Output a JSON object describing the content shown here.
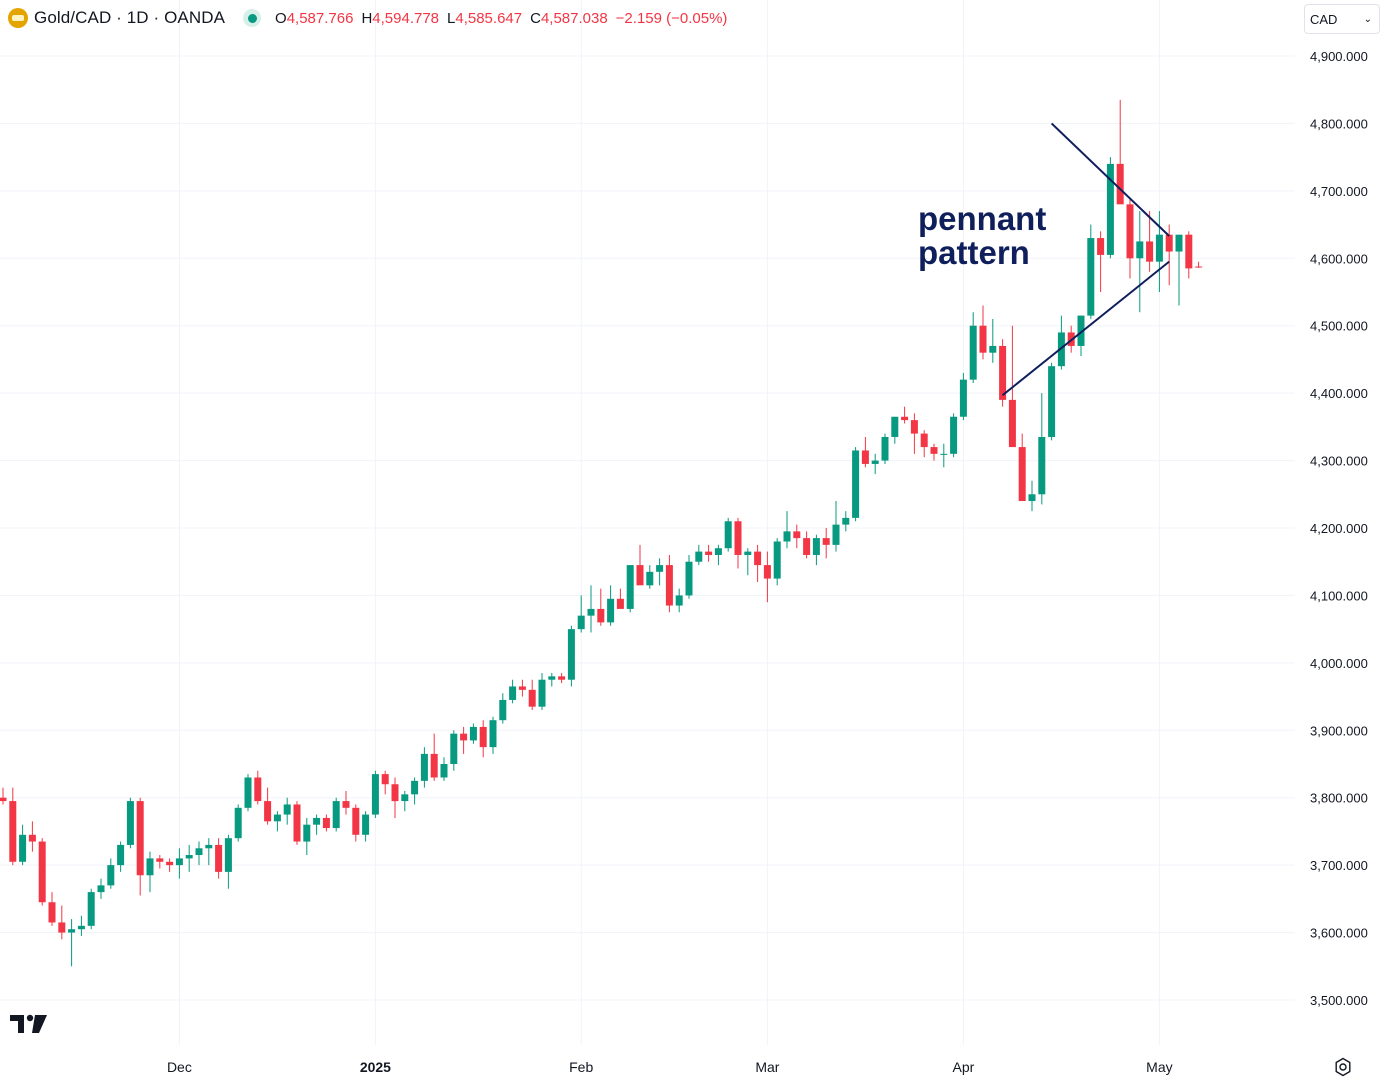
{
  "header": {
    "symbol": "Gold/CAD · 1D · OANDA",
    "open_label": "O",
    "open": "4,587.766",
    "high_label": "H",
    "high": "4,594.778",
    "low_label": "L",
    "low": "4,585.647",
    "close_label": "C",
    "close": "4,587.038",
    "change": "−2.159 (−0.05%)"
  },
  "currency_select": {
    "value": "CAD"
  },
  "colors": {
    "up": "#089981",
    "down": "#f23645",
    "annotation": "#0f1f5c",
    "grid": "#f0f3fa"
  },
  "icons": {
    "logo": "tradingview-logo-icon",
    "settings": "settings-icon",
    "symbol": "gold-bars-icon"
  },
  "chart_data": {
    "type": "candlestick",
    "annotation": "pennant pattern",
    "y_axis": {
      "ticks": [
        "3,500.000",
        "3,600.000",
        "3,700.000",
        "3,800.000",
        "3,900.000",
        "4,000.000",
        "4,100.000",
        "4,200.000",
        "4,300.000",
        "4,400.000",
        "4,500.000",
        "4,600.000",
        "4,700.000",
        "4,800.000",
        "4,900.000"
      ],
      "range": [
        3430,
        4985
      ]
    },
    "x_axis": {
      "labels": [
        "Dec",
        "2025",
        "Feb",
        "Mar",
        "Apr",
        "May"
      ],
      "label_index": [
        18,
        38,
        59,
        78,
        98,
        118
      ]
    },
    "trendlines": [
      {
        "name": "upper",
        "from": [
          107,
          4800
        ],
        "to": [
          119,
          4633
        ]
      },
      {
        "name": "lower",
        "from": [
          102,
          4397
        ],
        "to": [
          119,
          4595
        ]
      }
    ],
    "candles": [
      [
        3800,
        3815,
        3790,
        3795
      ],
      [
        3795,
        3815,
        3700,
        3705
      ],
      [
        3705,
        3760,
        3700,
        3745
      ],
      [
        3745,
        3765,
        3720,
        3735
      ],
      [
        3735,
        3740,
        3640,
        3645
      ],
      [
        3645,
        3660,
        3610,
        3615
      ],
      [
        3615,
        3640,
        3590,
        3600
      ],
      [
        3600,
        3620,
        3550,
        3605
      ],
      [
        3605,
        3625,
        3595,
        3610
      ],
      [
        3610,
        3665,
        3605,
        3660
      ],
      [
        3660,
        3680,
        3650,
        3670
      ],
      [
        3670,
        3710,
        3665,
        3700
      ],
      [
        3700,
        3735,
        3690,
        3730
      ],
      [
        3730,
        3800,
        3725,
        3795
      ],
      [
        3795,
        3800,
        3655,
        3685
      ],
      [
        3685,
        3720,
        3660,
        3710
      ],
      [
        3710,
        3715,
        3695,
        3705
      ],
      [
        3705,
        3710,
        3690,
        3700
      ],
      [
        3700,
        3725,
        3680,
        3710
      ],
      [
        3710,
        3730,
        3690,
        3715
      ],
      [
        3715,
        3735,
        3700,
        3725
      ],
      [
        3725,
        3740,
        3700,
        3730
      ],
      [
        3730,
        3740,
        3680,
        3690
      ],
      [
        3690,
        3745,
        3665,
        3740
      ],
      [
        3740,
        3790,
        3735,
        3785
      ],
      [
        3785,
        3835,
        3780,
        3830
      ],
      [
        3830,
        3840,
        3790,
        3795
      ],
      [
        3795,
        3815,
        3760,
        3765
      ],
      [
        3765,
        3780,
        3750,
        3775
      ],
      [
        3775,
        3800,
        3760,
        3790
      ],
      [
        3790,
        3795,
        3730,
        3735
      ],
      [
        3735,
        3770,
        3715,
        3760
      ],
      [
        3760,
        3775,
        3745,
        3770
      ],
      [
        3770,
        3775,
        3750,
        3755
      ],
      [
        3755,
        3800,
        3750,
        3795
      ],
      [
        3795,
        3810,
        3775,
        3785
      ],
      [
        3785,
        3790,
        3735,
        3745
      ],
      [
        3745,
        3780,
        3735,
        3775
      ],
      [
        3775,
        3840,
        3770,
        3835
      ],
      [
        3835,
        3840,
        3805,
        3820
      ],
      [
        3820,
        3830,
        3770,
        3795
      ],
      [
        3795,
        3810,
        3780,
        3805
      ],
      [
        3805,
        3830,
        3790,
        3825
      ],
      [
        3825,
        3875,
        3815,
        3865
      ],
      [
        3865,
        3895,
        3825,
        3830
      ],
      [
        3830,
        3860,
        3825,
        3850
      ],
      [
        3850,
        3900,
        3840,
        3895
      ],
      [
        3895,
        3905,
        3865,
        3885
      ],
      [
        3885,
        3910,
        3880,
        3905
      ],
      [
        3905,
        3915,
        3860,
        3875
      ],
      [
        3875,
        3920,
        3865,
        3915
      ],
      [
        3915,
        3955,
        3910,
        3945
      ],
      [
        3945,
        3975,
        3940,
        3965
      ],
      [
        3965,
        3975,
        3950,
        3960
      ],
      [
        3960,
        3975,
        3930,
        3935
      ],
      [
        3935,
        3985,
        3930,
        3975
      ],
      [
        3975,
        3985,
        3965,
        3980
      ],
      [
        3980,
        3985,
        3970,
        3975
      ],
      [
        3975,
        4055,
        3965,
        4050
      ],
      [
        4050,
        4100,
        4045,
        4070
      ],
      [
        4070,
        4115,
        4045,
        4080
      ],
      [
        4080,
        4110,
        4055,
        4060
      ],
      [
        4060,
        4115,
        4055,
        4095
      ],
      [
        4095,
        4110,
        4085,
        4080
      ],
      [
        4080,
        4130,
        4075,
        4145
      ],
      [
        4145,
        4175,
        4120,
        4115
      ],
      [
        4115,
        4145,
        4110,
        4135
      ],
      [
        4135,
        4155,
        4115,
        4145
      ],
      [
        4145,
        4160,
        4075,
        4085
      ],
      [
        4085,
        4110,
        4075,
        4100
      ],
      [
        4100,
        4160,
        4095,
        4150
      ],
      [
        4150,
        4175,
        4145,
        4165
      ],
      [
        4165,
        4175,
        4150,
        4160
      ],
      [
        4160,
        4175,
        4145,
        4170
      ],
      [
        4170,
        4215,
        4165,
        4210
      ],
      [
        4210,
        4215,
        4140,
        4160
      ],
      [
        4160,
        4170,
        4130,
        4165
      ],
      [
        4165,
        4175,
        4120,
        4145
      ],
      [
        4145,
        4165,
        4090,
        4125
      ],
      [
        4125,
        4185,
        4115,
        4180
      ],
      [
        4180,
        4225,
        4170,
        4195
      ],
      [
        4195,
        4205,
        4170,
        4185
      ],
      [
        4185,
        4195,
        4155,
        4160
      ],
      [
        4160,
        4190,
        4145,
        4185
      ],
      [
        4185,
        4200,
        4155,
        4175
      ],
      [
        4175,
        4240,
        4165,
        4205
      ],
      [
        4205,
        4225,
        4195,
        4215
      ],
      [
        4215,
        4320,
        4210,
        4315
      ],
      [
        4315,
        4335,
        4290,
        4295
      ],
      [
        4295,
        4310,
        4280,
        4300
      ],
      [
        4300,
        4340,
        4295,
        4335
      ],
      [
        4335,
        4360,
        4325,
        4365
      ],
      [
        4365,
        4380,
        4355,
        4360
      ],
      [
        4360,
        4370,
        4310,
        4340
      ],
      [
        4340,
        4345,
        4305,
        4320
      ],
      [
        4320,
        4325,
        4300,
        4310
      ],
      [
        4310,
        4325,
        4290,
        4310
      ],
      [
        4310,
        4370,
        4305,
        4365
      ],
      [
        4365,
        4430,
        4360,
        4420
      ],
      [
        4420,
        4520,
        4415,
        4500
      ],
      [
        4500,
        4530,
        4450,
        4460
      ],
      [
        4460,
        4510,
        4445,
        4470
      ],
      [
        4470,
        4480,
        4380,
        4390
      ],
      [
        4390,
        4500,
        4330,
        4320
      ],
      [
        4320,
        4340,
        4240,
        4240
      ],
      [
        4240,
        4270,
        4225,
        4250
      ],
      [
        4250,
        4400,
        4235,
        4335
      ],
      [
        4335,
        4445,
        4330,
        4440
      ],
      [
        4440,
        4515,
        4435,
        4490
      ],
      [
        4490,
        4500,
        4460,
        4470
      ],
      [
        4470,
        4515,
        4455,
        4515
      ],
      [
        4515,
        4650,
        4510,
        4630
      ],
      [
        4630,
        4640,
        4550,
        4605
      ],
      [
        4605,
        4750,
        4600,
        4740
      ],
      [
        4740,
        4835,
        4685,
        4680
      ],
      [
        4680,
        4690,
        4570,
        4600
      ],
      [
        4600,
        4670,
        4520,
        4625
      ],
      [
        4625,
        4670,
        4580,
        4595
      ],
      [
        4595,
        4670,
        4550,
        4635
      ],
      [
        4635,
        4650,
        4560,
        4610
      ],
      [
        4610,
        4630,
        4530,
        4635
      ],
      [
        4635,
        4640,
        4570,
        4585
      ],
      [
        4587.766,
        4594.778,
        4585.647,
        4587.038
      ]
    ]
  }
}
